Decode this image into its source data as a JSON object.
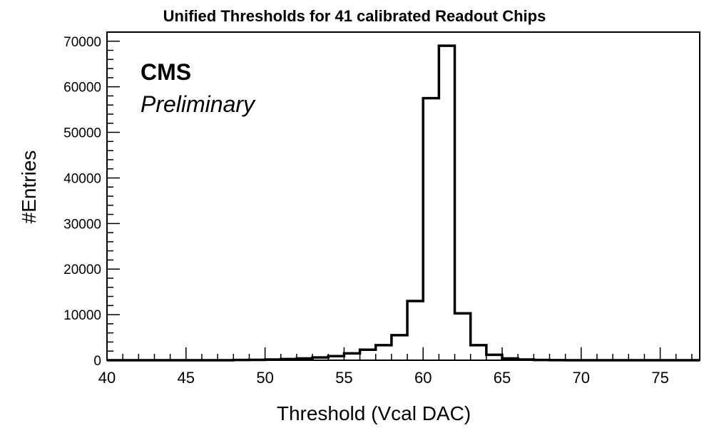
{
  "chart_data": {
    "type": "histogram",
    "title": "Unified Thresholds for 41 calibrated Readout Chips",
    "xlabel": "Threshold (Vcal DAC)",
    "ylabel": "#Entries",
    "annotations": {
      "experiment": "CMS",
      "status": "Preliminary"
    },
    "xlim": [
      40,
      77.5
    ],
    "ylim": [
      0,
      72000
    ],
    "bin_width": 1,
    "xticks": [
      40,
      45,
      50,
      55,
      60,
      65,
      70,
      75
    ],
    "yticks": [
      0,
      10000,
      20000,
      30000,
      40000,
      50000,
      60000,
      70000
    ],
    "legend": "none",
    "bins": [
      {
        "x_low": 40,
        "value": 0
      },
      {
        "x_low": 41,
        "value": 0
      },
      {
        "x_low": 42,
        "value": 0
      },
      {
        "x_low": 43,
        "value": 0
      },
      {
        "x_low": 44,
        "value": 0
      },
      {
        "x_low": 45,
        "value": 0
      },
      {
        "x_low": 46,
        "value": 0
      },
      {
        "x_low": 47,
        "value": 0
      },
      {
        "x_low": 48,
        "value": 50
      },
      {
        "x_low": 49,
        "value": 80
      },
      {
        "x_low": 50,
        "value": 150
      },
      {
        "x_low": 51,
        "value": 250
      },
      {
        "x_low": 52,
        "value": 400
      },
      {
        "x_low": 53,
        "value": 600
      },
      {
        "x_low": 54,
        "value": 900
      },
      {
        "x_low": 55,
        "value": 1500
      },
      {
        "x_low": 56,
        "value": 2300
      },
      {
        "x_low": 57,
        "value": 3300
      },
      {
        "x_low": 58,
        "value": 5500
      },
      {
        "x_low": 59,
        "value": 13000
      },
      {
        "x_low": 60,
        "value": 57500
      },
      {
        "x_low": 61,
        "value": 69000
      },
      {
        "x_low": 62,
        "value": 10300
      },
      {
        "x_low": 63,
        "value": 3300
      },
      {
        "x_low": 64,
        "value": 1200
      },
      {
        "x_low": 65,
        "value": 400
      },
      {
        "x_low": 66,
        "value": 150
      },
      {
        "x_low": 67,
        "value": 50
      },
      {
        "x_low": 68,
        "value": 20
      },
      {
        "x_low": 69,
        "value": 0
      },
      {
        "x_low": 70,
        "value": 0
      },
      {
        "x_low": 71,
        "value": 0
      },
      {
        "x_low": 72,
        "value": 0
      },
      {
        "x_low": 73,
        "value": 0
      },
      {
        "x_low": 74,
        "value": 0
      },
      {
        "x_low": 75,
        "value": 0
      },
      {
        "x_low": 76,
        "value": 0
      },
      {
        "x_low": 77,
        "value": 0
      }
    ]
  }
}
